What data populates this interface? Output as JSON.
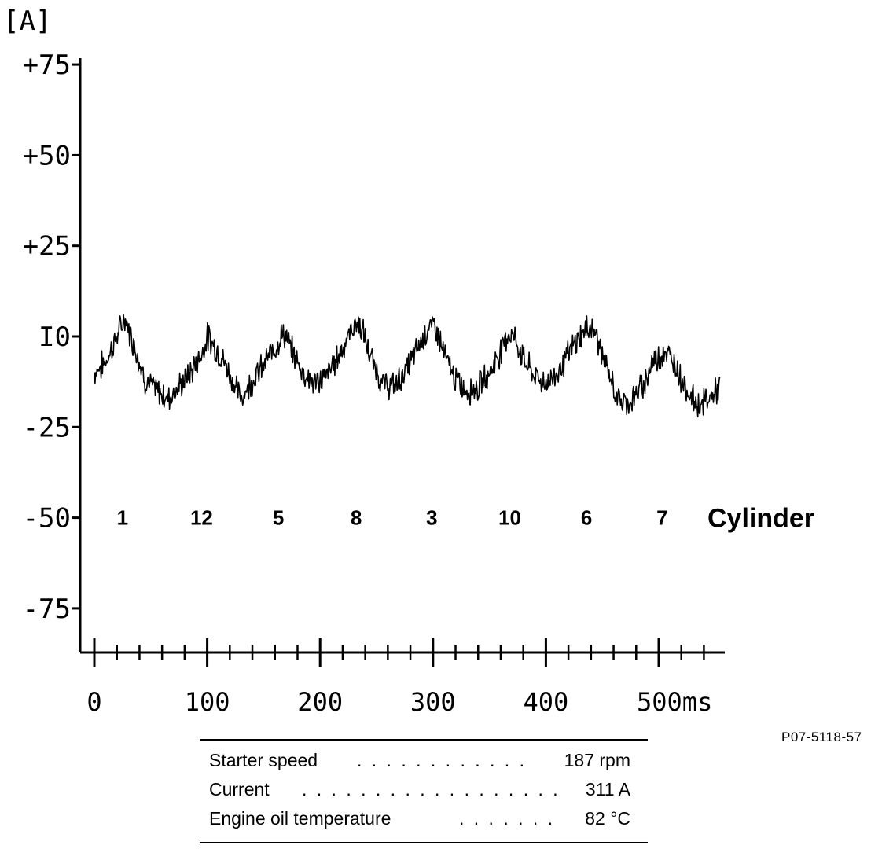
{
  "figure_id": "P07-5118-57",
  "chart_data": {
    "type": "line",
    "y_unit_label": "[A]",
    "y_ticks": [
      "+75",
      "+50",
      "+25",
      "I0",
      "-25",
      "-50",
      "-75"
    ],
    "y_tick_values": [
      75,
      50,
      25,
      0,
      -25,
      -50,
      -75
    ],
    "ylim": [
      -87,
      75
    ],
    "x_ticks": [
      "0",
      "100",
      "200",
      "300",
      "400",
      "500ms"
    ],
    "x_tick_values": [
      0,
      100,
      200,
      300,
      400,
      500
    ],
    "xlim": [
      -12,
      558
    ],
    "x_minor_step": 20,
    "series": [
      {
        "x": [
          0,
          10,
          20,
          27,
          35,
          45,
          55,
          65,
          75,
          85,
          95,
          100,
          105,
          115,
          125,
          130,
          140,
          150,
          160,
          168,
          175,
          185,
          195,
          205,
          215,
          225,
          232,
          237,
          245,
          255,
          265,
          275,
          285,
          295,
          302,
          310,
          320,
          330,
          340,
          350,
          360,
          365,
          370,
          380,
          390,
          400,
          410,
          420,
          430,
          440,
          445,
          455,
          465,
          475,
          485,
          495,
          505,
          515,
          525,
          535,
          545,
          555
        ],
        "y": [
          -10,
          -7,
          0,
          5,
          -2,
          -12,
          -15,
          -17,
          -14,
          -10,
          -5,
          0,
          -2,
          -7,
          -14,
          -17,
          -12,
          -8,
          -3,
          1,
          -4,
          -10,
          -13,
          -11,
          -6,
          0,
          4,
          2,
          -6,
          -13,
          -14,
          -10,
          -4,
          2,
          3,
          -5,
          -12,
          -15,
          -14,
          -10,
          -4,
          0,
          1,
          -6,
          -11,
          -13,
          -10,
          -5,
          0,
          3,
          0,
          -10,
          -18,
          -18,
          -14,
          -7,
          -4,
          -8,
          -15,
          -19,
          -17,
          -14
        ]
      }
    ],
    "annotations": {
      "title": "Cylinder",
      "labels": [
        "1",
        "12",
        "5",
        "8",
        "3",
        "10",
        "6",
        "7"
      ],
      "x_positions": [
        25,
        95,
        163,
        232,
        299,
        368,
        436,
        503
      ],
      "y": -50
    }
  },
  "table": {
    "rows": [
      {
        "label": "Starter speed",
        "dots": ". . . . . . . . . . . .",
        "value": "187 rpm"
      },
      {
        "label": "Current",
        "dots": ". . . . . . . . . . . . . . . . . .",
        "value": "311 A"
      },
      {
        "label": "Engine oil temperature",
        "dots": ". . . . . . .",
        "value": "82 °C"
      }
    ]
  }
}
